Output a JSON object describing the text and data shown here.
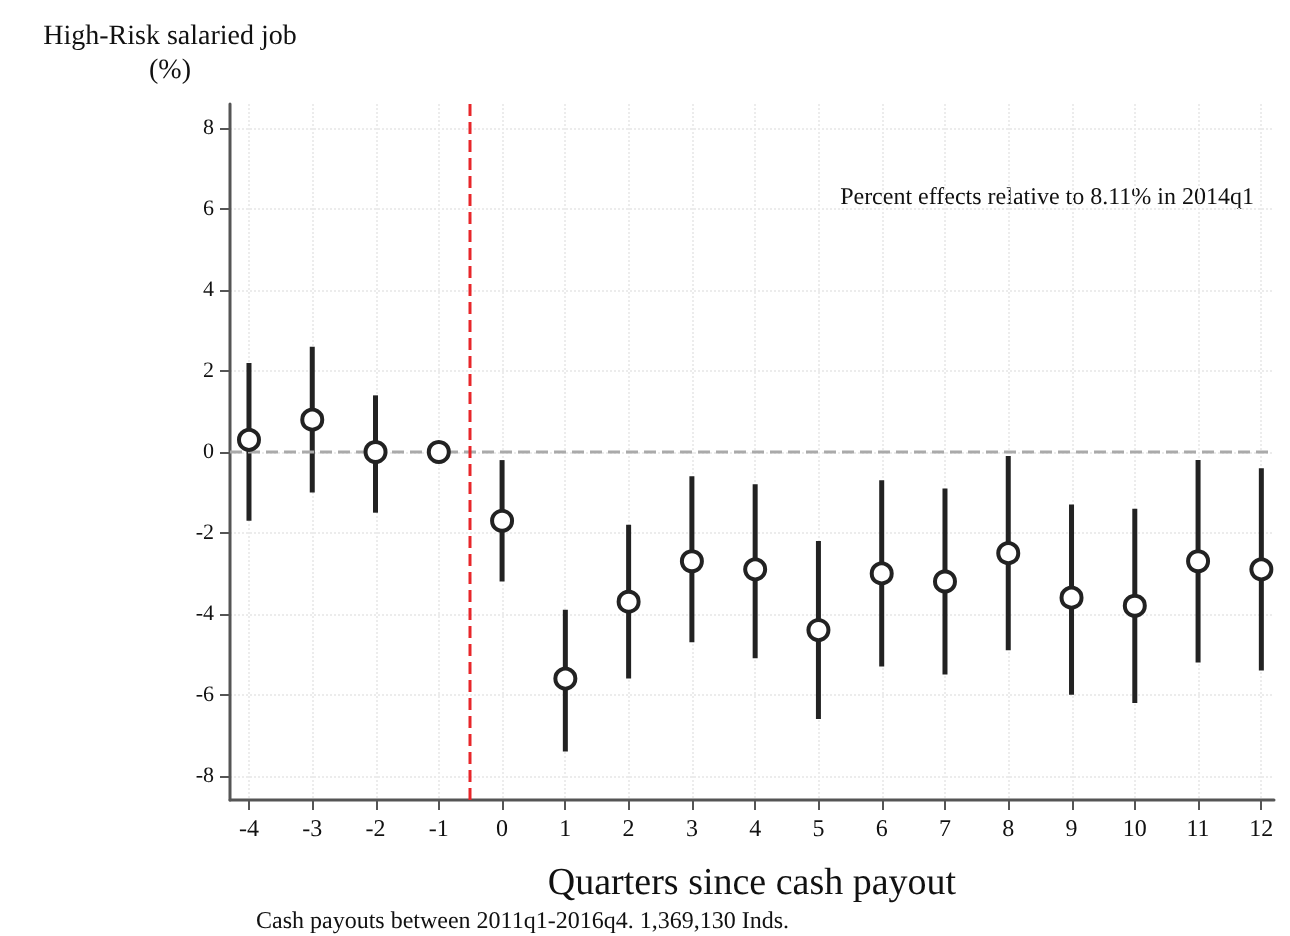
{
  "chart_data": {
    "type": "scatter",
    "ylabel": "High-Risk salaried job\n(%)",
    "xlabel": "Quarters since cash payout",
    "annotations": [
      "Percent effects relative to 8.11% in 2014q1",
      "Cash payouts between 2011q1-2016q4. 1,369,130 Inds."
    ],
    "x": [
      -4,
      -3,
      -2,
      -1,
      0,
      1,
      2,
      3,
      4,
      5,
      6,
      7,
      8,
      9,
      10,
      11,
      12
    ],
    "series": [
      {
        "color": "#222222",
        "values": [
          0.3,
          0.8,
          0,
          0,
          -1.7,
          -5.6,
          -3.7,
          -2.7,
          -2.9,
          -4.4,
          -3.0,
          -3.2,
          -2.5,
          -3.6,
          -3.8,
          -2.7,
          -2.9
        ],
        "errors": [
          [
            -1.7,
            2.2
          ],
          [
            -1.0,
            2.6
          ],
          [
            -1.5,
            1.4
          ],
          null,
          [
            -3.2,
            -0.2
          ],
          [
            -7.4,
            -3.9
          ],
          [
            -5.6,
            -1.8
          ],
          [
            -4.7,
            -0.6
          ],
          [
            -5.1,
            -0.8
          ],
          [
            -6.6,
            -2.2
          ],
          [
            -5.3,
            -0.7
          ],
          [
            -5.5,
            -0.9
          ],
          [
            -4.9,
            -0.1
          ],
          [
            -6.0,
            -1.3
          ],
          [
            -6.2,
            -1.4
          ],
          [
            -5.2,
            -0.2
          ],
          [
            -5.4,
            -0.4
          ]
        ]
      }
    ],
    "xlim": [
      -4.3,
      12.2
    ],
    "ylim": [
      -8.6,
      8.6
    ],
    "xticks": [
      -4,
      -3,
      -2,
      -1,
      0,
      1,
      2,
      3,
      4,
      5,
      6,
      7,
      8,
      9,
      10,
      11,
      12
    ],
    "yticks": [
      -8,
      -6,
      -4,
      -2,
      0,
      2,
      4,
      6,
      8
    ],
    "ref_lines": [
      {
        "axis": "y",
        "value": 0,
        "color": "#aaaaaa",
        "line_style": "dashed"
      },
      {
        "axis": "x",
        "value": -0.5,
        "color": "#e8262a",
        "line_style": "dashed"
      }
    ],
    "grid": true,
    "marker": "circle"
  }
}
